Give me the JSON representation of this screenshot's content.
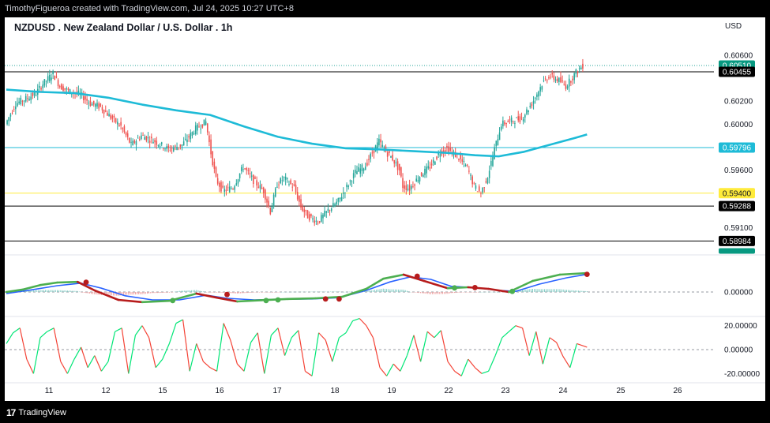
{
  "header": {
    "attribution": "TimothyFigueroa created with TradingView.com, Jul 24, 2025 10:27 UTC+8"
  },
  "footer": {
    "logo_text": "TradingView",
    "logo_mark": "17"
  },
  "colors": {
    "bull": "#26a69a",
    "bear": "#ef5350",
    "ma": "#1ebbd7",
    "macd_fast": "#4caf50",
    "macd_fast_down": "#b71c1c",
    "macd_slow": "#2962ff",
    "osc_up": "#00e676",
    "osc_down": "#f44336",
    "level_cyan": "#1ebbd7",
    "level_yellow": "#ffeb3b",
    "level_black": "#000000",
    "price_green": "#089981"
  },
  "chart_data": {
    "type": "candlestick",
    "symbol_title": "NZDUSD . New Zealand Dollar / U.S. Dollar . 1h",
    "price_axis": {
      "unit": "USD",
      "ylim": [
        0.5887,
        0.6075
      ],
      "ticks": [
        "0.60600",
        "0.60200",
        "0.60000",
        "0.59600",
        "0.59100"
      ],
      "tick_values": [
        0.606,
        0.602,
        0.6,
        0.596,
        0.591
      ]
    },
    "x_axis": {
      "tick_labels": [
        "11",
        "12",
        "15",
        "16",
        "17",
        "18",
        "19",
        "22",
        "23",
        "24",
        "25",
        "26"
      ]
    },
    "price_labels": [
      {
        "value": 0.6051,
        "text": "0.60510",
        "style": "green"
      },
      {
        "value": 0.60455,
        "text": "0.60455",
        "style": "black"
      },
      {
        "value": 0.59796,
        "text": "0.59796",
        "style": "cyan"
      },
      {
        "value": 0.594,
        "text": "0.59400",
        "style": "yellow"
      },
      {
        "value": 0.59288,
        "text": "0.59288",
        "style": "black"
      },
      {
        "value": 0.58984,
        "text": "0.58984",
        "style": "black"
      },
      {
        "value": 0.58856,
        "text": "0.58856",
        "style": "green-small"
      }
    ],
    "horizontal_levels": [
      {
        "value": 0.60455,
        "color": "#000000"
      },
      {
        "value": 0.59796,
        "color": "#1ebbd7"
      },
      {
        "value": 0.594,
        "color": "#ffeb3b"
      },
      {
        "value": 0.59288,
        "color": "#000000"
      },
      {
        "value": 0.58984,
        "color": "#000000"
      }
    ],
    "last_price": 0.6051,
    "path_points": [
      [
        0,
        0.6
      ],
      [
        6,
        0.6018
      ],
      [
        12,
        0.6022
      ],
      [
        18,
        0.6027
      ],
      [
        22,
        0.6035
      ],
      [
        28,
        0.6044
      ],
      [
        32,
        0.6033
      ],
      [
        38,
        0.6028
      ],
      [
        44,
        0.6026
      ],
      [
        50,
        0.6018
      ],
      [
        56,
        0.6015
      ],
      [
        62,
        0.6006
      ],
      [
        68,
        0.5998
      ],
      [
        74,
        0.5982
      ],
      [
        80,
        0.599
      ],
      [
        88,
        0.5985
      ],
      [
        96,
        0.5978
      ],
      [
        104,
        0.5982
      ],
      [
        112,
        0.5996
      ],
      [
        118,
        0.6002
      ],
      [
        121,
        0.5975
      ],
      [
        124,
        0.5952
      ],
      [
        128,
        0.5942
      ],
      [
        134,
        0.5945
      ],
      [
        140,
        0.5963
      ],
      [
        146,
        0.5951
      ],
      [
        152,
        0.5942
      ],
      [
        156,
        0.5924
      ],
      [
        160,
        0.5948
      ],
      [
        164,
        0.5953
      ],
      [
        170,
        0.5945
      ],
      [
        174,
        0.5928
      ],
      [
        178,
        0.592
      ],
      [
        184,
        0.5915
      ],
      [
        190,
        0.5925
      ],
      [
        196,
        0.5933
      ],
      [
        200,
        0.5943
      ],
      [
        206,
        0.5958
      ],
      [
        212,
        0.5964
      ],
      [
        216,
        0.5975
      ],
      [
        220,
        0.5985
      ],
      [
        224,
        0.5976
      ],
      [
        228,
        0.597
      ],
      [
        232,
        0.596
      ],
      [
        234,
        0.5946
      ],
      [
        238,
        0.5944
      ],
      [
        244,
        0.5955
      ],
      [
        250,
        0.5963
      ],
      [
        256,
        0.5976
      ],
      [
        260,
        0.5979
      ],
      [
        266,
        0.5972
      ],
      [
        272,
        0.5962
      ],
      [
        276,
        0.5946
      ],
      [
        280,
        0.594
      ],
      [
        284,
        0.5955
      ],
      [
        288,
        0.5978
      ],
      [
        292,
        0.6
      ],
      [
        298,
        0.6003
      ],
      [
        304,
        0.6005
      ],
      [
        310,
        0.6018
      ],
      [
        316,
        0.6035
      ],
      [
        320,
        0.6042
      ],
      [
        326,
        0.6038
      ],
      [
        330,
        0.6033
      ],
      [
        336,
        0.6045
      ],
      [
        340,
        0.6051
      ]
    ],
    "ma_points": [
      [
        0,
        0.603
      ],
      [
        20,
        0.6028
      ],
      [
        40,
        0.6027
      ],
      [
        60,
        0.6023
      ],
      [
        80,
        0.6017
      ],
      [
        100,
        0.6012
      ],
      [
        120,
        0.6008
      ],
      [
        140,
        0.5998
      ],
      [
        160,
        0.5989
      ],
      [
        180,
        0.5983
      ],
      [
        200,
        0.5979
      ],
      [
        220,
        0.5978
      ],
      [
        240,
        0.59765
      ],
      [
        260,
        0.5975
      ],
      [
        276,
        0.5973
      ],
      [
        290,
        0.5972
      ],
      [
        305,
        0.5976
      ],
      [
        320,
        0.5982
      ],
      [
        335,
        0.5988
      ],
      [
        342,
        0.5991
      ]
    ],
    "macd": {
      "zero_label": "0.00000",
      "line_fast": [
        [
          0,
          0.0
        ],
        [
          10,
          0.08
        ],
        [
          20,
          0.22
        ],
        [
          30,
          0.3
        ],
        [
          42,
          0.32
        ],
        [
          52,
          0.05
        ],
        [
          66,
          -0.25
        ],
        [
          80,
          -0.32
        ],
        [
          96,
          -0.28
        ],
        [
          112,
          -0.05
        ],
        [
          124,
          -0.18
        ],
        [
          136,
          -0.3
        ],
        [
          150,
          -0.26
        ],
        [
          166,
          -0.22
        ],
        [
          182,
          -0.2
        ],
        [
          198,
          -0.15
        ],
        [
          212,
          0.1
        ],
        [
          222,
          0.42
        ],
        [
          234,
          0.55
        ],
        [
          246,
          0.35
        ],
        [
          260,
          0.12
        ],
        [
          272,
          0.15
        ],
        [
          284,
          0.1
        ],
        [
          296,
          0.0
        ],
        [
          310,
          0.35
        ],
        [
          326,
          0.55
        ],
        [
          342,
          0.6
        ]
      ],
      "line_slow": [
        [
          0,
          -0.05
        ],
        [
          14,
          0.06
        ],
        [
          30,
          0.2
        ],
        [
          44,
          0.28
        ],
        [
          56,
          0.12
        ],
        [
          70,
          -0.12
        ],
        [
          86,
          -0.25
        ],
        [
          102,
          -0.25
        ],
        [
          118,
          -0.1
        ],
        [
          130,
          -0.2
        ],
        [
          146,
          -0.25
        ],
        [
          162,
          -0.23
        ],
        [
          180,
          -0.22
        ],
        [
          196,
          -0.18
        ],
        [
          212,
          0.05
        ],
        [
          226,
          0.32
        ],
        [
          238,
          0.48
        ],
        [
          250,
          0.4
        ],
        [
          262,
          0.18
        ],
        [
          276,
          0.14
        ],
        [
          290,
          0.05
        ],
        [
          300,
          0.02
        ],
        [
          314,
          0.25
        ],
        [
          330,
          0.45
        ],
        [
          342,
          0.56
        ]
      ],
      "signal_dots": [
        {
          "x": 47,
          "y": 0.31,
          "dir": "down"
        },
        {
          "x": 98,
          "y": -0.27,
          "dir": "up"
        },
        {
          "x": 130,
          "y": -0.08,
          "dir": "down"
        },
        {
          "x": 153,
          "y": -0.27,
          "dir": "up"
        },
        {
          "x": 160,
          "y": -0.25,
          "dir": "up"
        },
        {
          "x": 188,
          "y": -0.22,
          "dir": "down"
        },
        {
          "x": 196,
          "y": -0.22,
          "dir": "down"
        },
        {
          "x": 242,
          "y": 0.5,
          "dir": "down"
        },
        {
          "x": 264,
          "y": 0.13,
          "dir": "up"
        },
        {
          "x": 276,
          "y": 0.14,
          "dir": "down"
        },
        {
          "x": 298,
          "y": 0.02,
          "dir": "up"
        },
        {
          "x": 342,
          "y": 0.56,
          "dir": "down"
        }
      ]
    },
    "oscillator": {
      "ticks": [
        "20.00000",
        "0.00000",
        "-20.00000"
      ],
      "tick_values": [
        20,
        0,
        -20
      ],
      "ylim": [
        -27,
        27
      ],
      "values": [
        [
          0,
          5
        ],
        [
          4,
          14
        ],
        [
          8,
          18
        ],
        [
          12,
          -8
        ],
        [
          16,
          -20
        ],
        [
          20,
          10
        ],
        [
          24,
          15
        ],
        [
          28,
          18
        ],
        [
          32,
          -10
        ],
        [
          36,
          -20
        ],
        [
          40,
          -8
        ],
        [
          44,
          2
        ],
        [
          48,
          -15
        ],
        [
          52,
          -5
        ],
        [
          56,
          -18
        ],
        [
          60,
          -10
        ],
        [
          64,
          15
        ],
        [
          68,
          18
        ],
        [
          72,
          -20
        ],
        [
          76,
          12
        ],
        [
          80,
          20
        ],
        [
          84,
          10
        ],
        [
          88,
          -15
        ],
        [
          92,
          -8
        ],
        [
          96,
          5
        ],
        [
          100,
          22
        ],
        [
          104,
          25
        ],
        [
          108,
          -18
        ],
        [
          112,
          5
        ],
        [
          116,
          -10
        ],
        [
          120,
          -15
        ],
        [
          124,
          -18
        ],
        [
          128,
          22
        ],
        [
          132,
          8
        ],
        [
          136,
          -12
        ],
        [
          140,
          -18
        ],
        [
          144,
          6
        ],
        [
          148,
          14
        ],
        [
          152,
          -20
        ],
        [
          156,
          12
        ],
        [
          160,
          18
        ],
        [
          164,
          -5
        ],
        [
          168,
          10
        ],
        [
          172,
          16
        ],
        [
          176,
          -18
        ],
        [
          180,
          -22
        ],
        [
          184,
          14
        ],
        [
          188,
          8
        ],
        [
          192,
          -10
        ],
        [
          196,
          10
        ],
        [
          200,
          14
        ],
        [
          204,
          24
        ],
        [
          208,
          26
        ],
        [
          212,
          20
        ],
        [
          216,
          10
        ],
        [
          220,
          -15
        ],
        [
          224,
          -22
        ],
        [
          228,
          -12
        ],
        [
          232,
          -18
        ],
        [
          236,
          -5
        ],
        [
          240,
          12
        ],
        [
          244,
          -10
        ],
        [
          248,
          15
        ],
        [
          252,
          10
        ],
        [
          256,
          16
        ],
        [
          260,
          -10
        ],
        [
          264,
          -18
        ],
        [
          268,
          -22
        ],
        [
          272,
          -8
        ],
        [
          276,
          -15
        ],
        [
          280,
          -20
        ],
        [
          284,
          -18
        ],
        [
          288,
          -5
        ],
        [
          292,
          10
        ],
        [
          296,
          15
        ],
        [
          300,
          20
        ],
        [
          304,
          18
        ],
        [
          308,
          -5
        ],
        [
          312,
          15
        ],
        [
          316,
          -12
        ],
        [
          320,
          10
        ],
        [
          324,
          6
        ],
        [
          328,
          -6
        ],
        [
          332,
          -15
        ],
        [
          336,
          5
        ],
        [
          340,
          3
        ],
        [
          342,
          2
        ]
      ]
    }
  }
}
